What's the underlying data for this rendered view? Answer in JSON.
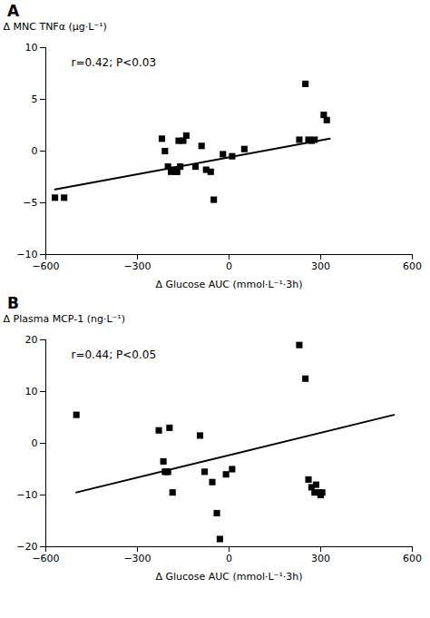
{
  "chart_data": [
    {
      "type": "scatter",
      "title": "A",
      "x_label": "Δ Glucose AUC (mmol·L⁻¹·3h)",
      "y_label": "Δ MNC TNFα (μg·L⁻¹)",
      "annotation": "r=0.42; P<0.03",
      "series": [
        {
          "type": "scatter",
          "marker": "square",
          "color": "black",
          "x": [
            -570,
            -540,
            -220,
            -210,
            -200,
            -190,
            -180,
            -175,
            -170,
            -165,
            -160,
            -150,
            -140,
            -110,
            -90,
            -75,
            -60,
            -50,
            -20,
            10,
            50,
            230,
            250,
            260,
            270,
            280,
            310,
            320
          ],
          "values": [
            -4.5,
            -4.5,
            1.2,
            0.0,
            -1.5,
            -2.0,
            -1.8,
            -2.0,
            -2.0,
            1.0,
            -1.5,
            1.0,
            1.5,
            -1.5,
            0.5,
            -1.8,
            -2.0,
            -4.7,
            -0.3,
            -0.5,
            0.2,
            1.1,
            6.5,
            1.1,
            1.0,
            1.1,
            3.5,
            3.0
          ]
        },
        {
          "type": "line",
          "color": "black",
          "line_style": "solid",
          "x": [
            -570,
            330
          ],
          "values": [
            -3.7,
            1.2
          ]
        }
      ],
      "xlim": [
        -600,
        600
      ],
      "ylim": [
        -10,
        10
      ],
      "xticks": [
        -600,
        -300,
        0,
        300,
        600
      ],
      "yticks": [
        -10,
        -5,
        0,
        5,
        10
      ],
      "grid": false
    },
    {
      "type": "scatter",
      "title": "B",
      "x_label": "Δ Glucose AUC (mmol·L⁻¹·3h)",
      "y_label": "Δ Plasma MCP-1 (ng·L⁻¹)",
      "annotation": "r=0.44; P<0.05",
      "series": [
        {
          "type": "scatter",
          "marker": "square",
          "color": "black",
          "x": [
            -500,
            -230,
            -215,
            -210,
            -205,
            -200,
            -195,
            -185,
            -95,
            -80,
            -55,
            -40,
            -30,
            -10,
            10,
            230,
            250,
            260,
            270,
            280,
            285,
            295,
            300,
            305
          ],
          "values": [
            5.5,
            2.5,
            -3.5,
            -5.5,
            -5.5,
            -5.5,
            3.0,
            -9.5,
            1.5,
            -5.5,
            -7.5,
            -13.5,
            -18.5,
            -6.0,
            -5.0,
            19.0,
            12.5,
            -7.0,
            -8.5,
            -9.5,
            -8.0,
            -9.5,
            -10.0,
            -9.5
          ]
        },
        {
          "type": "line",
          "color": "black",
          "line_style": "solid",
          "x": [
            -500,
            540
          ],
          "values": [
            -9.5,
            5.5
          ]
        }
      ],
      "xlim": [
        -600,
        600
      ],
      "ylim": [
        -20,
        20
      ],
      "xticks": [
        -600,
        -300,
        0,
        300,
        600
      ],
      "yticks": [
        -20,
        -10,
        0,
        10,
        20
      ],
      "grid": false
    }
  ]
}
